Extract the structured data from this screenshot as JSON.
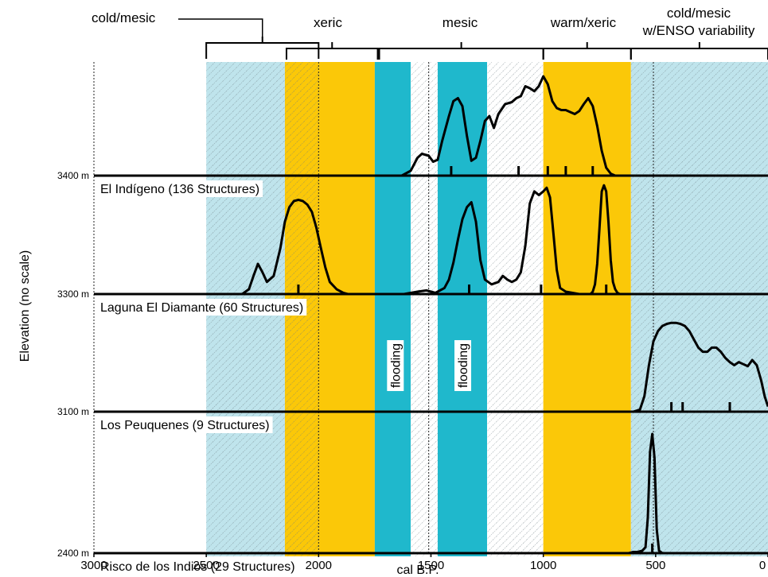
{
  "chart_data": {
    "type": "area",
    "xlabel": "cal B.P.",
    "ylabel": "Elevation (no scale)",
    "x_ticks": [
      "3000",
      "2500",
      "2000",
      "1500",
      "1000",
      "500",
      "0"
    ],
    "xlim": [
      3000,
      0
    ],
    "x_reversed": true,
    "climate_periods": [
      {
        "label": "cold/mesic",
        "from": 2500,
        "to": 2000
      },
      {
        "label": "xeric",
        "from": 2150,
        "to": 1730
      },
      {
        "label": "mesic",
        "from": 1730,
        "to": 1000
      },
      {
        "label": "warm/xeric",
        "from": 1000,
        "to": 610
      },
      {
        "label": "cold/mesic w/ENSO variability",
        "from": 610,
        "to": 0
      }
    ],
    "bands": [
      {
        "from": 2500,
        "to": 2150,
        "kind": "cold",
        "color": "#bfe4ec",
        "hatch": true
      },
      {
        "from": 2150,
        "to": 2000,
        "kind": "xeric",
        "color": "#fbc808",
        "hatch": true
      },
      {
        "from": 2000,
        "to": 1750,
        "kind": "xeric",
        "color": "#fbc808",
        "hatch": false
      },
      {
        "from": 1750,
        "to": 1590,
        "kind": "flood",
        "color": "#1fb8cc",
        "hatch": false
      },
      {
        "from": 1590,
        "to": 1470,
        "kind": "mesic",
        "color": "#ffffff",
        "hatch": true
      },
      {
        "from": 1470,
        "to": 1250,
        "kind": "flood",
        "color": "#1fb8cc",
        "hatch": false
      },
      {
        "from": 1250,
        "to": 1000,
        "kind": "mesic",
        "color": "#ffffff",
        "hatch": true
      },
      {
        "from": 1000,
        "to": 610,
        "kind": "warm",
        "color": "#fbc808",
        "hatch": false
      },
      {
        "from": 610,
        "to": 0,
        "kind": "cold",
        "color": "#bfe4ec",
        "hatch": true
      }
    ],
    "flood_labels": [
      {
        "text": "flooding",
        "x": 1660
      },
      {
        "text": "flooding",
        "x": 1360
      }
    ],
    "dotted_lines_x": [
      3000,
      2000,
      1510,
      510
    ],
    "series": [
      {
        "name": "El Indígeno (136 Structures)",
        "elevation": "3400 m",
        "x": [
          3000,
          1630,
          1590,
          1560,
          1540,
          1510,
          1490,
          1470,
          1450,
          1420,
          1400,
          1380,
          1360,
          1340,
          1320,
          1300,
          1280,
          1260,
          1240,
          1220,
          1200,
          1170,
          1140,
          1120,
          1100,
          1080,
          1060,
          1040,
          1020,
          1000,
          980,
          960,
          940,
          920,
          900,
          880,
          860,
          840,
          820,
          800,
          780,
          760,
          740,
          720,
          700,
          690,
          680,
          0
        ],
        "y": [
          0,
          0,
          0.05,
          0.18,
          0.22,
          0.2,
          0.14,
          0.16,
          0.35,
          0.6,
          0.75,
          0.78,
          0.7,
          0.4,
          0.15,
          0.18,
          0.35,
          0.55,
          0.6,
          0.48,
          0.62,
          0.72,
          0.74,
          0.78,
          0.8,
          0.9,
          0.88,
          0.85,
          0.9,
          1.0,
          0.92,
          0.75,
          0.68,
          0.66,
          0.66,
          0.64,
          0.62,
          0.65,
          0.72,
          0.78,
          0.7,
          0.5,
          0.25,
          0.08,
          0.02,
          0.01,
          0,
          0
        ],
        "markers": [
          1410,
          1110,
          980,
          900,
          780
        ]
      },
      {
        "name": "Laguna El Diamante (60 Structures)",
        "elevation": "3300 m",
        "x": [
          3000,
          2340,
          2310,
          2290,
          2270,
          2250,
          2230,
          2200,
          2170,
          2150,
          2130,
          2110,
          2090,
          2070,
          2050,
          2030,
          2010,
          1990,
          1970,
          1950,
          1920,
          1890,
          1870,
          1860,
          1620,
          1560,
          1520,
          1480,
          1440,
          1420,
          1400,
          1380,
          1360,
          1340,
          1320,
          1300,
          1280,
          1260,
          1230,
          1200,
          1180,
          1160,
          1140,
          1120,
          1100,
          1080,
          1060,
          1040,
          1020,
          1000,
          985,
          970,
          955,
          940,
          925,
          900,
          870,
          840,
          810,
          790,
          780,
          770,
          760,
          750,
          740,
          730,
          720,
          710,
          700,
          690,
          680,
          670,
          660,
          640,
          0
        ],
        "y": [
          0,
          0,
          0.04,
          0.15,
          0.25,
          0.18,
          0.1,
          0.15,
          0.38,
          0.6,
          0.72,
          0.77,
          0.78,
          0.77,
          0.74,
          0.68,
          0.55,
          0.38,
          0.22,
          0.1,
          0.04,
          0.01,
          0,
          0,
          0,
          0.02,
          0.03,
          0.01,
          0.05,
          0.12,
          0.26,
          0.45,
          0.62,
          0.72,
          0.76,
          0.6,
          0.28,
          0.12,
          0.08,
          0.1,
          0.15,
          0.12,
          0.1,
          0.12,
          0.18,
          0.4,
          0.75,
          0.85,
          0.82,
          0.85,
          0.88,
          0.8,
          0.5,
          0.2,
          0.05,
          0.02,
          0.01,
          0,
          0,
          0,
          0.02,
          0.08,
          0.25,
          0.55,
          0.85,
          0.9,
          0.85,
          0.6,
          0.28,
          0.1,
          0.04,
          0.01,
          0,
          0,
          0
        ],
        "markers": [
          2090,
          1330,
          1010,
          720
        ]
      },
      {
        "name": "Los Peuquenes (9 Structures)",
        "elevation": "3100 m",
        "x": [
          3000,
          600,
          570,
          550,
          530,
          510,
          490,
          470,
          450,
          430,
          410,
          390,
          370,
          350,
          330,
          310,
          290,
          270,
          250,
          230,
          210,
          190,
          170,
          150,
          130,
          110,
          90,
          70,
          50,
          30,
          15,
          0
        ],
        "y": [
          0,
          0,
          0.02,
          0.15,
          0.45,
          0.68,
          0.78,
          0.83,
          0.85,
          0.86,
          0.86,
          0.85,
          0.83,
          0.78,
          0.7,
          0.62,
          0.58,
          0.58,
          0.62,
          0.62,
          0.58,
          0.52,
          0.48,
          0.45,
          0.48,
          0.46,
          0.44,
          0.5,
          0.45,
          0.3,
          0.15,
          0.05
        ],
        "markers": [
          430,
          380,
          170
        ]
      },
      {
        "name": "Risco de los Indios (29 Structures)",
        "elevation": "2400 m",
        "x": [
          3000,
          620,
          600,
          580,
          560,
          545,
          535,
          525,
          515,
          505,
          495,
          485,
          470,
          0
        ],
        "y": [
          0,
          0,
          0.01,
          0.01,
          0.02,
          0.05,
          0.3,
          0.85,
          1.0,
          0.8,
          0.2,
          0.02,
          0,
          0
        ],
        "markers": [
          515
        ]
      }
    ]
  }
}
